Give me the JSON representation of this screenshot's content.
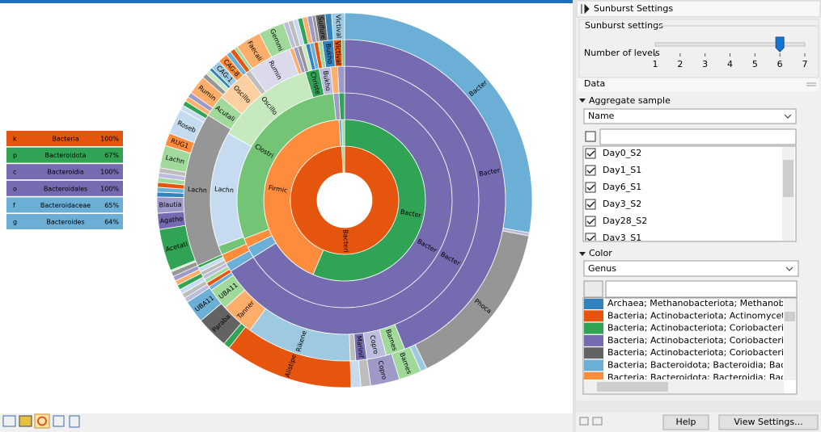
{
  "tooltip": {
    "rows": [
      [
        "k",
        "Bacteria",
        "100%"
      ],
      [
        "p",
        "Bacteroidota",
        "67%"
      ],
      [
        "c",
        "Bacteroidia",
        "100%"
      ],
      [
        "o",
        "Bacteroidales",
        "100%"
      ],
      [
        "f",
        "Bacteroidaceae",
        "65%"
      ],
      [
        "g",
        "Bacteroides",
        "64%"
      ]
    ]
  },
  "sunburst": {
    "labels": [
      "Bacteri",
      "Bacter",
      "Firmic",
      "Bacter",
      "Clostri",
      "Bacter",
      "Lachn",
      "Oscillo",
      "Christe",
      "Bukho",
      "Bacter",
      "Barnes",
      "Copro",
      "Marinif",
      "Rikene",
      "Tanner",
      "UBA11",
      "Lachn",
      "Acutali",
      "Oscillo",
      "Rumin",
      "Bukho",
      "Victival",
      "Bacter",
      "Phoca",
      "Barnes",
      "Copro",
      "Alistipe",
      "Paraba",
      "UBA11",
      "Acetati",
      "Agatho",
      "Blautia",
      "Lachn",
      "RUG1",
      "Roseb",
      "Rumin",
      "CAG-1",
      "CAG-8",
      "Faecali",
      "Gemmi",
      "Sulfure",
      "Victival"
    ]
  },
  "panel": {
    "title": "Sunburst Settings",
    "section": "Sunburst settings",
    "levels_label": "Number of levels",
    "levels_ticks": [
      1,
      2,
      3,
      4,
      5,
      6,
      7
    ],
    "levels_value": 6
  },
  "data": {
    "header": "Data",
    "aggregate_label": "Aggregate sample",
    "aggregate_value": "Name",
    "samples": [
      "Day0_S2",
      "Day1_S1",
      "Day6_S1",
      "Day3_S2",
      "Day28_S2",
      "Day3_S1"
    ]
  },
  "color": {
    "header": "Color",
    "value": "Genus",
    "items": [
      {
        "label": "Archaea; Methanobacteriota; Methanobacter",
        "color": "#3182bd"
      },
      {
        "label": "Bacteria; Actinobacteriota; Actinomycetia; Ac",
        "color": "#e6550d"
      },
      {
        "label": "Bacteria; Actinobacteriota; Coriobacteria; Co",
        "color": "#31a354"
      },
      {
        "label": "Bacteria; Actinobacteriota; Coriobacteria; Co",
        "color": "#756bb1"
      },
      {
        "label": "Bacteria; Actinobacteriota; Coriobacteria; Co",
        "color": "#636363"
      },
      {
        "label": "Bacteria; Bacteroidota; Bacteroidia; Bacteroi",
        "color": "#6baed6"
      },
      {
        "label": "Bacteria; Bacteroidota; Bacteroidia; Bacteroic",
        "color": "#fd8d3c"
      }
    ]
  },
  "buttons": {
    "help": "Help",
    "view_settings": "View Settings..."
  }
}
